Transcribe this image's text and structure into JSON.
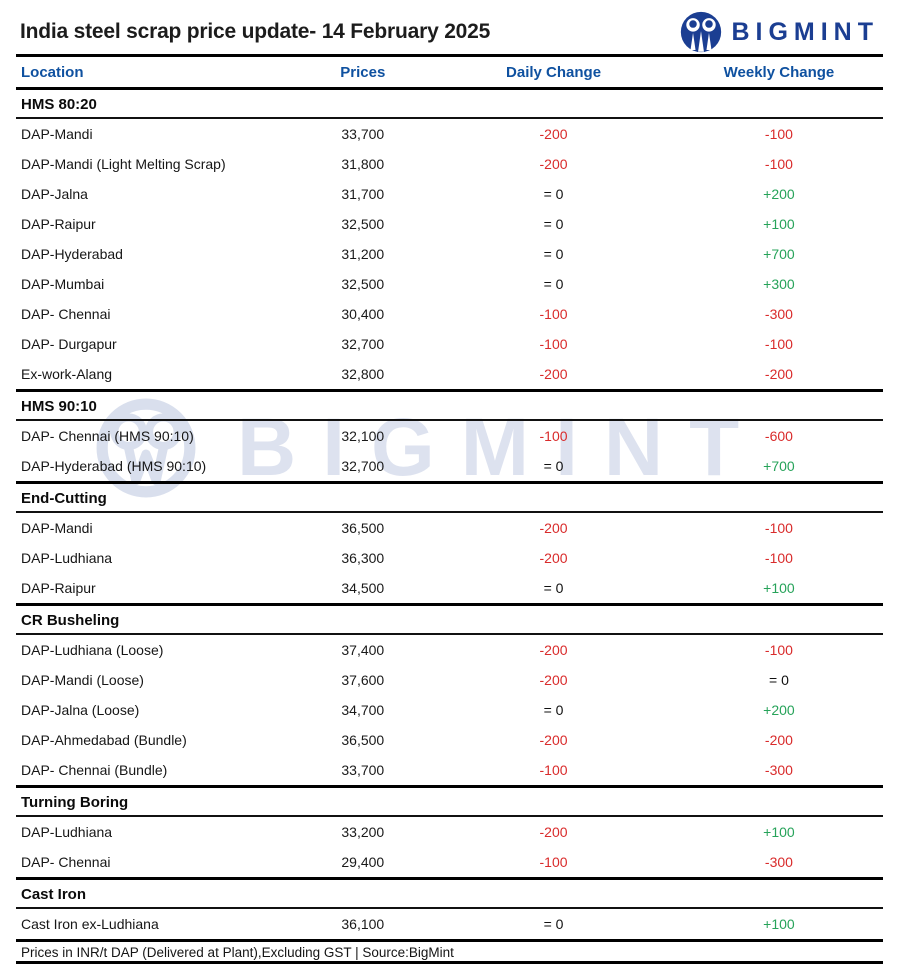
{
  "header": {
    "title": "India steel scrap price update- 14 February 2025",
    "brand": "BIGMINT"
  },
  "watermark": {
    "brand": "BIGMINT"
  },
  "columns": [
    "Location",
    "Prices",
    "Daily Change",
    "Weekly Change"
  ],
  "colors": {
    "column_header_blue": "#0f51a0",
    "brand_navy": "#1b3e92",
    "negative_red": "#d92b2b",
    "positive_green": "#27a35a",
    "neutral_black": "#111111"
  },
  "sections": [
    {
      "name": "HMS 80:20",
      "rows": [
        {
          "location": "DAP-Mandi",
          "price": "33,700",
          "daily": "-200",
          "weekly": "-100"
        },
        {
          "location": "DAP-Mandi (Light Melting Scrap)",
          "price": "31,800",
          "daily": "-200",
          "weekly": "-100"
        },
        {
          "location": "DAP-Jalna",
          "price": "31,700",
          "daily": "= 0",
          "weekly": "+200"
        },
        {
          "location": "DAP-Raipur",
          "price": "32,500",
          "daily": "= 0",
          "weekly": "+100"
        },
        {
          "location": "DAP-Hyderabad",
          "price": "31,200",
          "daily": "= 0",
          "weekly": "+700"
        },
        {
          "location": "DAP-Mumbai",
          "price": "32,500",
          "daily": "= 0",
          "weekly": "+300"
        },
        {
          "location": "DAP- Chennai",
          "price": "30,400",
          "daily": "-100",
          "weekly": "-300"
        },
        {
          "location": "DAP- Durgapur",
          "price": "32,700",
          "daily": "-100",
          "weekly": "-100"
        },
        {
          "location": "Ex-work-Alang",
          "price": "32,800",
          "daily": "-200",
          "weekly": "-200"
        }
      ]
    },
    {
      "name": "HMS 90:10",
      "rows": [
        {
          "location": "DAP- Chennai  (HMS 90:10)",
          "price": "32,100",
          "daily": "-100",
          "weekly": "-600"
        },
        {
          "location": "DAP-Hyderabad (HMS 90:10)",
          "price": "32,700",
          "daily": "= 0",
          "weekly": "+700"
        }
      ]
    },
    {
      "name": "End-Cutting",
      "rows": [
        {
          "location": "DAP-Mandi",
          "price": "36,500",
          "daily": "-200",
          "weekly": "-100"
        },
        {
          "location": "DAP-Ludhiana",
          "price": "36,300",
          "daily": "-200",
          "weekly": "-100"
        },
        {
          "location": "DAP-Raipur",
          "price": "34,500",
          "daily": "= 0",
          "weekly": "+100"
        }
      ]
    },
    {
      "name": "CR Busheling",
      "rows": [
        {
          "location": "DAP-Ludhiana (Loose)",
          "price": "37,400",
          "daily": "-200",
          "weekly": "-100"
        },
        {
          "location": "DAP-Mandi (Loose)",
          "price": "37,600",
          "daily": "-200",
          "weekly": "= 0"
        },
        {
          "location": "DAP-Jalna (Loose)",
          "price": "34,700",
          "daily": "= 0",
          "weekly": "+200"
        },
        {
          "location": "DAP-Ahmedabad (Bundle)",
          "price": "36,500",
          "daily": "-200",
          "weekly": "-200"
        },
        {
          "location": "DAP- Chennai (Bundle)",
          "price": "33,700",
          "daily": "-100",
          "weekly": "-300"
        }
      ]
    },
    {
      "name": "Turning Boring",
      "rows": [
        {
          "location": "DAP-Ludhiana",
          "price": "33,200",
          "daily": "-200",
          "weekly": "+100"
        },
        {
          "location": "DAP- Chennai",
          "price": "29,400",
          "daily": "-100",
          "weekly": "-300"
        }
      ]
    },
    {
      "name": "Cast Iron",
      "rows": [
        {
          "location": "Cast Iron ex-Ludhiana",
          "price": "36,100",
          "daily": "= 0",
          "weekly": "+100"
        }
      ]
    }
  ],
  "footer": {
    "note": "Prices in INR/t DAP (Delivered at Plant),Excluding GST | Source:BigMint"
  }
}
